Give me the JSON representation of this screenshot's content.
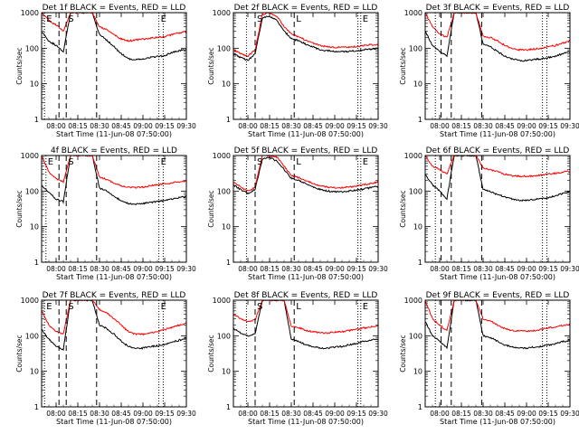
{
  "figure": {
    "xlabel": "Start Time (11-Jun-08 07:50:00)",
    "ylabel": "Counts/sec",
    "x_tick_labels": [
      "08:00",
      "08:15",
      "08:30",
      "08:45",
      "09:00",
      "09:15",
      "09:30"
    ],
    "y_tick_labels": [
      "1",
      "10",
      "100",
      "1000"
    ],
    "colors": {
      "events": "#000000",
      "lld": "#ff0000"
    }
  },
  "chart_data": [
    {
      "type": "line",
      "title": "Det 1f BLACK = Events, RED = LLD",
      "xlabel": "Start Time (11-Jun-08 07:50:00)",
      "ylabel": "Counts/sec",
      "xlim": [
        "07:50",
        "09:30"
      ],
      "ylim": [
        1,
        1000
      ],
      "yscale": "log",
      "x": [
        "07:50",
        "07:55",
        "08:00",
        "08:05",
        "08:10",
        "08:15",
        "08:20",
        "08:25",
        "08:30",
        "08:35",
        "08:40",
        "08:45",
        "08:50",
        "08:55",
        "09:00",
        "09:05",
        "09:10",
        "09:15",
        "09:20",
        "09:25",
        "09:30"
      ],
      "series": [
        {
          "name": "Events",
          "values": [
            300,
            160,
            120,
            80,
            1000,
            1000,
            1000,
            1000,
            240,
            170,
            110,
            70,
            50,
            48,
            50,
            55,
            58,
            62,
            75,
            85,
            90
          ]
        },
        {
          "name": "LLD",
          "values": [
            1000,
            600,
            450,
            300,
            1000,
            1000,
            1000,
            1000,
            400,
            330,
            240,
            180,
            160,
            170,
            180,
            190,
            200,
            210,
            240,
            270,
            290
          ]
        }
      ],
      "vlines": [
        {
          "x": "07:52",
          "style": "dotted",
          "label": "E"
        },
        {
          "x": "08:02",
          "style": "dashed",
          "label": ""
        },
        {
          "x": "08:07",
          "style": "dashed",
          "label": "S"
        },
        {
          "x": "08:28",
          "style": "dashed",
          "label": ""
        },
        {
          "x": "09:11",
          "style": "dotted",
          "label": "E"
        },
        {
          "x": "09:14",
          "style": "dotted",
          "label": ""
        }
      ]
    },
    {
      "type": "line",
      "title": "Det 2f BLACK = Events, RED = LLD",
      "xlabel": "Start Time (11-Jun-08 07:50:00)",
      "ylabel": "Counts/sec",
      "xlim": [
        "07:50",
        "09:30"
      ],
      "ylim": [
        1,
        1000
      ],
      "yscale": "log",
      "x": [
        "07:50",
        "07:55",
        "08:00",
        "08:05",
        "08:10",
        "08:15",
        "08:20",
        "08:25",
        "08:30",
        "08:35",
        "08:40",
        "08:45",
        "08:50",
        "08:55",
        "09:00",
        "09:05",
        "09:10",
        "09:15",
        "09:20",
        "09:25",
        "09:30"
      ],
      "series": [
        {
          "name": "Events",
          "values": [
            70,
            55,
            45,
            70,
            700,
            800,
            600,
            300,
            190,
            160,
            130,
            110,
            90,
            85,
            80,
            80,
            82,
            85,
            90,
            95,
            100
          ]
        },
        {
          "name": "LLD",
          "values": [
            90,
            70,
            60,
            90,
            900,
            1000,
            800,
            400,
            250,
            210,
            170,
            140,
            120,
            110,
            105,
            105,
            108,
            112,
            118,
            125,
            130
          ]
        }
      ],
      "vlines": [
        {
          "x": "07:59",
          "style": "dotted",
          "label": ""
        },
        {
          "x": "08:05",
          "style": "dashed",
          "label": "S"
        },
        {
          "x": "08:32",
          "style": "dashed",
          "label": "L"
        },
        {
          "x": "09:16",
          "style": "dotted",
          "label": ""
        },
        {
          "x": "09:18",
          "style": "dotted",
          "label": "E"
        }
      ]
    },
    {
      "type": "line",
      "title": "Det 3f BLACK = Events, RED = LLD",
      "xlabel": "Start Time (11-Jun-08 07:50:00)",
      "ylabel": "Counts/sec",
      "xlim": [
        "07:50",
        "09:30"
      ],
      "ylim": [
        1,
        1000
      ],
      "yscale": "log",
      "x": [
        "07:50",
        "07:55",
        "08:00",
        "08:05",
        "08:10",
        "08:15",
        "08:20",
        "08:25",
        "08:30",
        "08:35",
        "08:40",
        "08:45",
        "08:50",
        "08:55",
        "09:00",
        "09:05",
        "09:10",
        "09:15",
        "09:20",
        "09:25",
        "09:30"
      ],
      "series": [
        {
          "name": "Events",
          "values": [
            300,
            120,
            80,
            60,
            1000,
            1000,
            1000,
            1000,
            130,
            110,
            80,
            60,
            50,
            45,
            45,
            48,
            50,
            55,
            60,
            70,
            80
          ]
        },
        {
          "name": "LLD",
          "values": [
            1000,
            400,
            250,
            200,
            1000,
            1000,
            1000,
            1000,
            220,
            200,
            160,
            120,
            100,
            90,
            90,
            95,
            100,
            110,
            120,
            140,
            160
          ]
        }
      ],
      "vlines": [
        {
          "x": "07:57",
          "style": "dotted",
          "label": ""
        },
        {
          "x": "08:01",
          "style": "dashed",
          "label": ""
        },
        {
          "x": "08:08",
          "style": "dashed",
          "label": ""
        },
        {
          "x": "08:29",
          "style": "dashed",
          "label": ""
        },
        {
          "x": "09:11",
          "style": "dotted",
          "label": ""
        },
        {
          "x": "09:14",
          "style": "dotted",
          "label": ""
        }
      ]
    },
    {
      "type": "line",
      "title": "4f BLACK = Events, RED = LLD",
      "xlabel": "Start Time (11-Jun-08 07:50:00)",
      "ylabel": "Counts/sec",
      "xlim": [
        "07:50",
        "09:30"
      ],
      "ylim": [
        1,
        1000
      ],
      "yscale": "log",
      "x": [
        "07:50",
        "07:55",
        "08:00",
        "08:05",
        "08:10",
        "08:15",
        "08:20",
        "08:25",
        "08:30",
        "08:35",
        "08:40",
        "08:45",
        "08:50",
        "08:55",
        "09:00",
        "09:05",
        "09:10",
        "09:15",
        "09:20",
        "09:25",
        "09:30"
      ],
      "series": [
        {
          "name": "Events",
          "values": [
            150,
            90,
            60,
            50,
            1000,
            1000,
            1000,
            1000,
            120,
            100,
            70,
            55,
            45,
            42,
            45,
            48,
            50,
            55,
            60,
            65,
            70
          ]
        },
        {
          "name": "LLD",
          "values": [
            1000,
            350,
            220,
            180,
            1000,
            1000,
            1000,
            1000,
            250,
            210,
            170,
            140,
            130,
            125,
            130,
            140,
            150,
            160,
            170,
            180,
            190
          ]
        }
      ],
      "vlines": [
        {
          "x": "07:53",
          "style": "dotted",
          "label": "E"
        },
        {
          "x": "08:02",
          "style": "dashed",
          "label": ""
        },
        {
          "x": "08:07",
          "style": "dashed",
          "label": "S"
        },
        {
          "x": "08:28",
          "style": "dashed",
          "label": ""
        },
        {
          "x": "09:11",
          "style": "dotted",
          "label": "E"
        },
        {
          "x": "09:14",
          "style": "dotted",
          "label": ""
        }
      ]
    },
    {
      "type": "line",
      "title": "Det 5f BLACK = Events, RED = LLD",
      "xlabel": "Start Time (11-Jun-08 07:50:00)",
      "ylabel": "Counts/sec",
      "xlim": [
        "07:50",
        "09:30"
      ],
      "ylim": [
        1,
        1000
      ],
      "yscale": "log",
      "x": [
        "07:50",
        "07:55",
        "08:00",
        "08:05",
        "08:10",
        "08:15",
        "08:20",
        "08:25",
        "08:30",
        "08:35",
        "08:40",
        "08:45",
        "08:50",
        "08:55",
        "09:00",
        "09:05",
        "09:10",
        "09:15",
        "09:20",
        "09:25",
        "09:30"
      ],
      "series": [
        {
          "name": "Events",
          "values": [
            150,
            110,
            85,
            110,
            800,
            900,
            700,
            400,
            230,
            200,
            160,
            130,
            110,
            100,
            95,
            95,
            100,
            105,
            115,
            125,
            135
          ]
        },
        {
          "name": "LLD",
          "values": [
            180,
            130,
            100,
            130,
            1000,
            1000,
            900,
            500,
            280,
            240,
            200,
            160,
            140,
            130,
            125,
            125,
            130,
            140,
            150,
            165,
            180
          ]
        }
      ],
      "vlines": [
        {
          "x": "07:59",
          "style": "dotted",
          "label": ""
        },
        {
          "x": "08:05",
          "style": "dashed",
          "label": "S"
        },
        {
          "x": "08:32",
          "style": "dashed",
          "label": "L"
        },
        {
          "x": "09:16",
          "style": "dotted",
          "label": ""
        },
        {
          "x": "09:18",
          "style": "dotted",
          "label": "E"
        }
      ]
    },
    {
      "type": "line",
      "title": "Det 6f BLACK = Events, RED = LLD",
      "xlabel": "Start Time (11-Jun-08 07:50:00)",
      "ylabel": "Counts/sec",
      "xlim": [
        "07:50",
        "09:30"
      ],
      "ylim": [
        1,
        1000
      ],
      "yscale": "log",
      "x": [
        "07:50",
        "07:55",
        "08:00",
        "08:05",
        "08:10",
        "08:15",
        "08:20",
        "08:25",
        "08:30",
        "08:35",
        "08:40",
        "08:45",
        "08:50",
        "08:55",
        "09:00",
        "09:05",
        "09:10",
        "09:15",
        "09:20",
        "09:25",
        "09:30"
      ],
      "series": [
        {
          "name": "Events",
          "values": [
            300,
            150,
            100,
            60,
            1000,
            1000,
            1000,
            1000,
            110,
            95,
            80,
            70,
            60,
            55,
            55,
            58,
            60,
            65,
            75,
            85,
            95
          ]
        },
        {
          "name": "LLD",
          "values": [
            1000,
            500,
            400,
            300,
            1000,
            1000,
            1000,
            1000,
            450,
            400,
            350,
            300,
            270,
            260,
            260,
            270,
            280,
            300,
            320,
            340,
            360
          ]
        }
      ],
      "vlines": [
        {
          "x": "07:57",
          "style": "dotted",
          "label": ""
        },
        {
          "x": "08:01",
          "style": "dashed",
          "label": ""
        },
        {
          "x": "08:08",
          "style": "dashed",
          "label": ""
        },
        {
          "x": "08:29",
          "style": "dashed",
          "label": ""
        },
        {
          "x": "09:11",
          "style": "dotted",
          "label": ""
        },
        {
          "x": "09:14",
          "style": "dotted",
          "label": ""
        }
      ]
    },
    {
      "type": "line",
      "title": "Det 7f BLACK = Events, RED = LLD",
      "xlabel": "Start Time (11-Jun-08 07:50:00)",
      "ylabel": "Counts/sec",
      "xlim": [
        "07:50",
        "09:30"
      ],
      "ylim": [
        1,
        1000
      ],
      "yscale": "log",
      "x": [
        "07:50",
        "07:55",
        "08:00",
        "08:05",
        "08:10",
        "08:15",
        "08:20",
        "08:25",
        "08:30",
        "08:35",
        "08:40",
        "08:45",
        "08:50",
        "08:55",
        "09:00",
        "09:05",
        "09:10",
        "09:15",
        "09:20",
        "09:25",
        "09:30"
      ],
      "series": [
        {
          "name": "Events",
          "values": [
            150,
            80,
            50,
            40,
            1000,
            1000,
            1000,
            1000,
            200,
            160,
            110,
            70,
            50,
            45,
            45,
            50,
            52,
            58,
            65,
            75,
            85
          ]
        },
        {
          "name": "LLD",
          "values": [
            500,
            200,
            130,
            110,
            1000,
            1000,
            1000,
            1000,
            550,
            450,
            300,
            200,
            130,
            110,
            110,
            120,
            130,
            150,
            170,
            200,
            220
          ]
        }
      ],
      "vlines": [
        {
          "x": "07:52",
          "style": "dotted",
          "label": "E"
        },
        {
          "x": "08:02",
          "style": "dashed",
          "label": ""
        },
        {
          "x": "08:07",
          "style": "dashed",
          "label": "S"
        },
        {
          "x": "08:28",
          "style": "dashed",
          "label": ""
        },
        {
          "x": "09:11",
          "style": "dotted",
          "label": "E"
        },
        {
          "x": "09:14",
          "style": "dotted",
          "label": ""
        }
      ]
    },
    {
      "type": "line",
      "title": "Det 8f BLACK = Events, RED = LLD",
      "xlabel": "Start Time (11-Jun-08 07:50:00)",
      "ylabel": "Counts/sec",
      "xlim": [
        "07:50",
        "09:30"
      ],
      "ylim": [
        1,
        1000
      ],
      "yscale": "log",
      "x": [
        "07:50",
        "07:55",
        "08:00",
        "08:05",
        "08:10",
        "08:15",
        "08:20",
        "08:25",
        "08:30",
        "08:35",
        "08:40",
        "08:45",
        "08:50",
        "08:55",
        "09:00",
        "09:05",
        "09:10",
        "09:15",
        "09:20",
        "09:25",
        "09:30"
      ],
      "series": [
        {
          "name": "Events",
          "values": [
            160,
            120,
            100,
            110,
            1000,
            1000,
            1000,
            1000,
            80,
            70,
            55,
            50,
            45,
            45,
            48,
            50,
            55,
            60,
            70,
            75,
            80
          ]
        },
        {
          "name": "LLD",
          "values": [
            400,
            300,
            250,
            280,
            1000,
            1000,
            1000,
            1000,
            180,
            170,
            140,
            130,
            120,
            120,
            125,
            130,
            140,
            150,
            165,
            180,
            190
          ]
        }
      ],
      "vlines": [
        {
          "x": "07:59",
          "style": "dotted",
          "label": ""
        },
        {
          "x": "08:05",
          "style": "dashed",
          "label": "S"
        },
        {
          "x": "08:32",
          "style": "dashed",
          "label": "L"
        },
        {
          "x": "09:16",
          "style": "dotted",
          "label": ""
        },
        {
          "x": "09:18",
          "style": "dotted",
          "label": "E"
        }
      ]
    },
    {
      "type": "line",
      "title": "Det 9f BLACK = Events, RED = LLD",
      "xlabel": "Start Time (11-Jun-08 07:50:00)",
      "ylabel": "Counts/sec",
      "xlim": [
        "07:50",
        "09:30"
      ],
      "ylim": [
        1,
        1000
      ],
      "yscale": "log",
      "x": [
        "07:50",
        "07:55",
        "08:00",
        "08:05",
        "08:10",
        "08:15",
        "08:20",
        "08:25",
        "08:30",
        "08:35",
        "08:40",
        "08:45",
        "08:50",
        "08:55",
        "09:00",
        "09:05",
        "09:10",
        "09:15",
        "09:20",
        "09:25",
        "09:30"
      ],
      "series": [
        {
          "name": "Events",
          "values": [
            250,
            100,
            70,
            45,
            1000,
            1000,
            1000,
            1000,
            100,
            90,
            70,
            55,
            48,
            45,
            45,
            48,
            50,
            55,
            60,
            68,
            75
          ]
        },
        {
          "name": "LLD",
          "values": [
            1000,
            300,
            200,
            140,
            1000,
            1000,
            1000,
            1000,
            300,
            260,
            200,
            160,
            140,
            135,
            135,
            140,
            150,
            165,
            180,
            195,
            210
          ]
        }
      ],
      "vlines": [
        {
          "x": "07:57",
          "style": "dotted",
          "label": ""
        },
        {
          "x": "08:01",
          "style": "dashed",
          "label": ""
        },
        {
          "x": "08:08",
          "style": "dashed",
          "label": ""
        },
        {
          "x": "08:29",
          "style": "dashed",
          "label": ""
        },
        {
          "x": "09:11",
          "style": "dotted",
          "label": ""
        },
        {
          "x": "09:14",
          "style": "dotted",
          "label": ""
        }
      ]
    }
  ]
}
